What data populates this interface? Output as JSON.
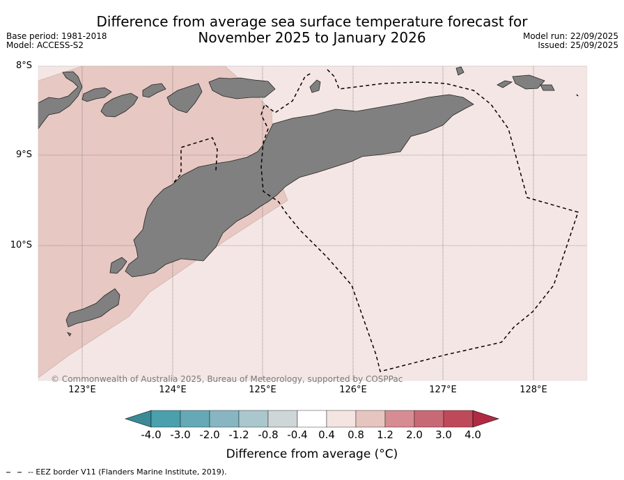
{
  "title_line1": "Difference from average sea surface temperature forecast for",
  "title_line2": "November 2025 to January 2026",
  "base_period": "Base period: 1981-2018",
  "model": "Model: ACCESS-S2",
  "model_run": "Model run: 22/09/2025",
  "issued": "Issued: 25/09/2025",
  "lat_labels": [
    "8°S",
    "9°S",
    "10°S"
  ],
  "lon_labels": [
    "123°E",
    "124°E",
    "125°E",
    "126°E",
    "127°E",
    "128°E"
  ],
  "copyright": "© Commonwealth of Australia 2025, Bureau of Meteorology, supported by COSPPac",
  "colorbar": {
    "ticks": [
      "-4.0",
      "-3.0",
      "-2.0",
      "-1.2",
      "-0.8",
      "-0.4",
      "0.4",
      "0.8",
      "1.2",
      "2.0",
      "3.0",
      "4.0"
    ],
    "colors": [
      "#3b8a98",
      "#4aa0ad",
      "#66a9b6",
      "#87b6c2",
      "#a9c7cc",
      "#cfd6d7",
      "#ffffff",
      "#f4e5e3",
      "#e6c5c0",
      "#d68c92",
      "#c86a75",
      "#be4a59",
      "#b02a43"
    ],
    "title": "Difference from average (°C)"
  },
  "legend_footnote": "-- EEZ border V11 (Flanders Marine Institute, 2019).",
  "colors": {
    "ocean_light": "#f4e6e4",
    "ocean_warm": "#e7c8c3",
    "land": "#808080",
    "eez": "#000000"
  }
}
